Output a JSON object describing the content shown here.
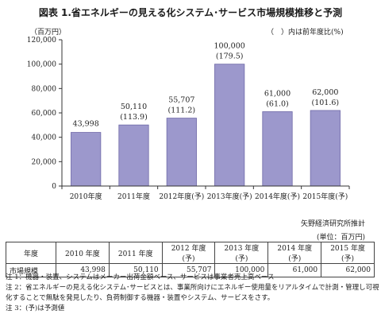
{
  "title": "図表 1.省エネルギーの見える化システム･サービス市場規模推移と予測",
  "unit_label": "（百万円）",
  "paren_note": "（　）内は前年度比(%)",
  "source": "矢野経済研究所推計",
  "table_unit": "(単位：百万円)",
  "chart_data": {
    "type": "bar",
    "categories": [
      "2010年度",
      "2011年度",
      "2012年度(予)",
      "2013年度(予)",
      "2014年度(予)",
      "2015年度(予)"
    ],
    "values": [
      43998,
      50110,
      55707,
      100000,
      61000,
      62000
    ],
    "value_labels": [
      "43,998",
      "50,110",
      "55,707",
      "100,000",
      "61,000",
      "62,000"
    ],
    "growth_labels": [
      "",
      "(113.9)",
      "(111.2)",
      "(179.5)",
      "(61.0)",
      "(101.6)"
    ],
    "ylim": [
      0,
      120000
    ],
    "yticks": [
      0,
      20000,
      40000,
      60000,
      80000,
      100000,
      120000
    ],
    "ytick_labels": [
      "0",
      "20,000",
      "40,000",
      "60,000",
      "80,000",
      "100,000",
      "120,000"
    ],
    "bar_color": "#9c98cc",
    "grid": false
  },
  "table": {
    "header": [
      "年度",
      "2010 年度",
      "2011 年度",
      "2012 年度(予)",
      "2013 年度(予)",
      "2014 年度(予)",
      "2015 年度(予)"
    ],
    "row_label": "市場規模",
    "values": [
      "43,998",
      "50,110",
      "55,707",
      "100,000",
      "61,000",
      "62,000"
    ]
  },
  "notes": [
    "注 1：機器・装置、システムはメーカー出荷金額ベース、サービスは事業者売上高ベース",
    "注 2：省エネルギーの見える化システム･サービスとは、事業所向けにエネルギー使用量をリアルタイムで計測・管理し可視",
    "化することで無駄を発見したり、負荷制御する機器・装置やシステム、サービスをさす。",
    "注 3：(予)は予測値"
  ]
}
